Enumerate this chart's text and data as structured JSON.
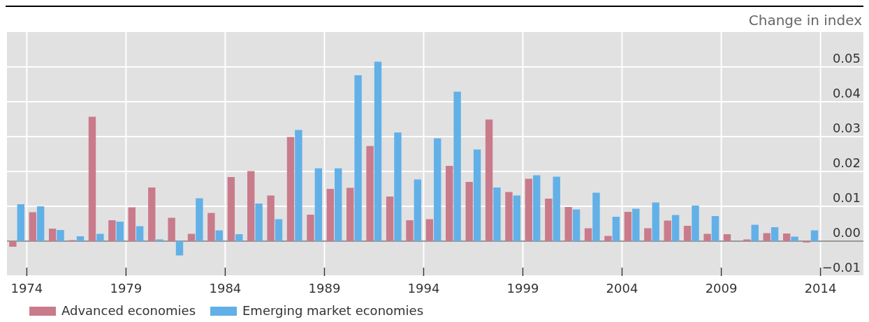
{
  "chart_data": {
    "type": "bar",
    "ylabel": "Change in index",
    "x": [
      "1973-07",
      "1974-07",
      "1975-07",
      "1976-07",
      "1977-07",
      "1978-07",
      "1979-07",
      "1980-07",
      "1981-07",
      "1982-07",
      "1983-07",
      "1984-07",
      "1985-07",
      "1986-07",
      "1987-07",
      "1988-07",
      "1989-07",
      "1990-07",
      "1991-07",
      "1992-07",
      "1993-07",
      "1994-07",
      "1995-07",
      "1996-07",
      "1997-07",
      "1998-07",
      "1999-07",
      "2000-07",
      "2001-07",
      "2002-07",
      "2003-07",
      "2004-07",
      "2005-07",
      "2006-07",
      "2007-07",
      "2008-07",
      "2009-07",
      "2010-07",
      "2011-07",
      "2012-07",
      "2013-07"
    ],
    "series": [
      {
        "name": "Advanced economies",
        "color": "#c97b8b",
        "values": [
          -0.0016,
          0.0083,
          0.0036,
          0.0003,
          0.0357,
          0.006,
          0.0097,
          0.0154,
          0.0067,
          0.0021,
          0.0081,
          0.0184,
          0.0201,
          0.0131,
          0.0299,
          0.0076,
          0.015,
          0.0153,
          0.0273,
          0.0128,
          0.006,
          0.0063,
          0.0216,
          0.017,
          0.0349,
          0.0141,
          0.0179,
          0.0122,
          0.0098,
          0.0037,
          0.0015,
          0.0084,
          0.0037,
          0.0059,
          0.0044,
          0.0021,
          0.002,
          0.0005,
          0.0023,
          0.0022,
          -0.0004
        ]
      },
      {
        "name": "Emerging market economies",
        "color": "#62b0e8",
        "values": [
          0.0106,
          0.01,
          0.0032,
          0.0014,
          0.0021,
          0.0056,
          0.0043,
          0.0005,
          -0.0041,
          0.0123,
          0.0031,
          0.002,
          0.0108,
          0.0063,
          0.0319,
          0.0209,
          0.0209,
          0.0476,
          0.0515,
          0.0312,
          0.0177,
          0.0295,
          0.0429,
          0.0263,
          0.0154,
          0.0131,
          0.0189,
          0.0185,
          0.0091,
          0.0139,
          0.007,
          0.0093,
          0.0111,
          0.0075,
          0.0102,
          0.0072,
          0,
          0.0047,
          0.004,
          0.0013,
          0.0031
        ]
      }
    ],
    "xlim": [
      "1973",
      "2016-03"
    ],
    "xticks": [
      "1974",
      "1979",
      "1984",
      "1989",
      "1994",
      "1999",
      "2004",
      "2009",
      "2014"
    ],
    "ylim": [
      -0.01,
      0.06
    ],
    "yticks": [
      {
        "value": -0.01,
        "label": "−0.01"
      },
      {
        "value": 0,
        "label": "0.00"
      },
      {
        "value": 0.01,
        "label": "0.01"
      },
      {
        "value": 0.02,
        "label": "0.02"
      },
      {
        "value": 0.03,
        "label": "0.03"
      },
      {
        "value": 0.04,
        "label": "0.04"
      },
      {
        "value": 0.05,
        "label": "0.05"
      }
    ],
    "grid": true,
    "legend": "bottom left"
  }
}
